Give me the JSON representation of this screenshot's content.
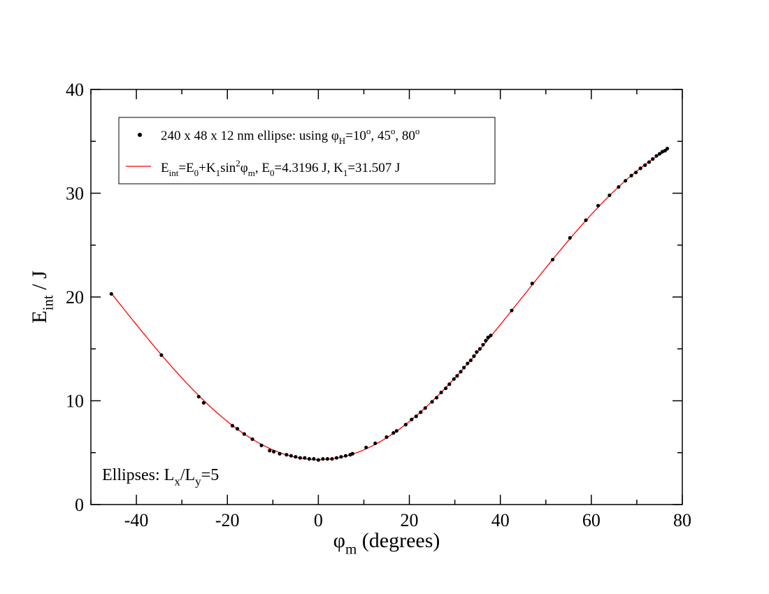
{
  "chart_data": {
    "type": "scatter",
    "title": "",
    "xlabel": {
      "symbol": "φ",
      "sub": "m",
      "rest": " (degrees)"
    },
    "ylabel": {
      "symbol": "E",
      "sub": "int",
      "rest": " / J"
    },
    "xlim": [
      -50,
      80
    ],
    "ylim": [
      0,
      40
    ],
    "xticks": [
      -40,
      -20,
      0,
      20,
      40,
      60,
      80
    ],
    "yticks": [
      0,
      10,
      20,
      30,
      40
    ],
    "grid": false,
    "legend": {
      "position": "top-left",
      "entries": [
        {
          "marker": "dot",
          "parts": [
            {
              "t": "240 x 48 x 12 nm ellipse:  using φ"
            },
            {
              "t": "H",
              "s": "sub"
            },
            {
              "t": "=10"
            },
            {
              "t": "o",
              "s": "sup"
            },
            {
              "t": ", 45"
            },
            {
              "t": "o",
              "s": "sup"
            },
            {
              "t": ", 80"
            },
            {
              "t": "o",
              "s": "sup"
            }
          ]
        },
        {
          "marker": "line",
          "parts": [
            {
              "t": "E"
            },
            {
              "t": "int",
              "s": "sub"
            },
            {
              "t": "=E"
            },
            {
              "t": "0",
              "s": "sub"
            },
            {
              "t": "+K"
            },
            {
              "t": "1",
              "s": "sub"
            },
            {
              "t": "sin"
            },
            {
              "t": "2",
              "s": "sup"
            },
            {
              "t": "φ"
            },
            {
              "t": "m",
              "s": "sub"
            },
            {
              "t": ",    E"
            },
            {
              "t": "0",
              "s": "sub"
            },
            {
              "t": "=4.3196 J,   K"
            },
            {
              "t": "1",
              "s": "sub"
            },
            {
              "t": "=31.507 J"
            }
          ]
        }
      ]
    },
    "annotation": {
      "position": "bottom-left",
      "parts": [
        {
          "t": "Ellipses: L"
        },
        {
          "t": "x",
          "s": "sub"
        },
        {
          "t": "/L"
        },
        {
          "t": "y",
          "s": "sub"
        },
        {
          "t": "=5"
        }
      ]
    },
    "fit": {
      "E0": 4.3196,
      "K1": 31.507,
      "color": "#ff0000"
    },
    "series": [
      {
        "name": "240 x 48 x 12 nm ellipse",
        "color": "#000000",
        "x": [
          -45.5,
          -34.5,
          -26.3,
          -25.2,
          -18.9,
          -17.8,
          -16.3,
          -14.5,
          -12.5,
          -10.7,
          -9.8,
          -8.5,
          -7.0,
          -6.0,
          -5.0,
          -4.0,
          -3.0,
          -2.0,
          -1.0,
          0.0,
          1.0,
          2.0,
          3.0,
          4.0,
          5.0,
          6.0,
          7.0,
          7.5,
          10.5,
          12.5,
          15.0,
          16.5,
          17.2,
          19.2,
          20.5,
          21.5,
          22.5,
          23.5,
          25.0,
          26.0,
          27.0,
          28.0,
          28.8,
          29.8,
          30.5,
          31.3,
          32.0,
          32.8,
          33.5,
          34.2,
          34.8,
          35.5,
          36.2,
          36.8,
          37.3,
          37.9,
          42.5,
          47.0,
          51.5,
          55.3,
          58.8,
          61.5,
          64.0,
          66.0,
          67.5,
          68.8,
          69.8,
          70.8,
          71.8,
          72.7,
          73.5,
          74.3,
          75.0,
          75.6,
          76.2,
          76.7
        ],
        "y": [
          20.3,
          14.4,
          10.4,
          9.8,
          7.6,
          7.3,
          6.8,
          6.3,
          5.7,
          5.2,
          5.1,
          4.9,
          4.8,
          4.7,
          4.6,
          4.5,
          4.5,
          4.4,
          4.4,
          4.3,
          4.4,
          4.4,
          4.4,
          4.5,
          4.6,
          4.7,
          4.8,
          4.9,
          5.5,
          5.9,
          6.5,
          6.9,
          7.1,
          7.7,
          8.2,
          8.5,
          8.9,
          9.3,
          9.9,
          10.3,
          10.8,
          11.2,
          11.6,
          12.1,
          12.4,
          12.8,
          13.2,
          13.6,
          13.9,
          14.3,
          14.7,
          15.0,
          15.4,
          15.8,
          16.1,
          16.3,
          18.7,
          21.3,
          23.6,
          25.7,
          27.4,
          28.8,
          29.8,
          30.6,
          31.2,
          31.7,
          32.0,
          32.4,
          32.7,
          33.0,
          33.3,
          33.6,
          33.8,
          34.0,
          34.1,
          34.3
        ]
      }
    ]
  }
}
